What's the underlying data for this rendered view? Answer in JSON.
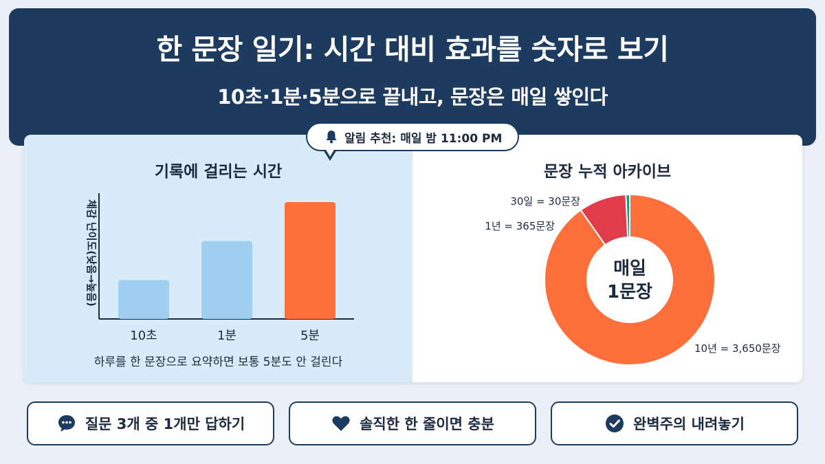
{
  "header": {
    "title": "한 문장 일기: 시간 대비 효과를 숫자로 보기",
    "subtitle": "10초·1분·5분으로 끝내고, 문장은 매일 쌓인다"
  },
  "callout": {
    "icon": "bell-icon",
    "text": "알림 추천: 매일 밤 11:00 PM"
  },
  "colors": {
    "navy": "#1d3a5f",
    "light_blue": "#9fd0f0",
    "orange": "#ff6f3c",
    "red": "#e03c4a",
    "teal": "#229379"
  },
  "left_panel": {
    "caption": "하루를 한 문장으로 요약하면 보통 5분도 안 걸린다"
  },
  "chart_data": [
    {
      "type": "bar",
      "title": "기록에 걸리는 시간",
      "ylabel": "체감 난이도(낮음→높음)",
      "xlabel": "",
      "categories": [
        "10초",
        "1분",
        "5분"
      ],
      "values": [
        1,
        2,
        3
      ],
      "ylim": [
        0,
        3
      ],
      "bar_colors": [
        "#9fd0f0",
        "#9fd0f0",
        "#ff6f3c"
      ],
      "y_ticks_shown": false,
      "grid": false
    },
    {
      "type": "pie",
      "title": "문장 누적 아카이브",
      "center_label": [
        "매일",
        "1문장"
      ],
      "categories": [
        "10년 = 3,650문장",
        "1년 = 365문장",
        "30일 = 30문장"
      ],
      "values": [
        3650,
        365,
        30
      ],
      "slice_colors": [
        "#ff6f3c",
        "#e03c4a",
        "#229379"
      ]
    }
  ],
  "pills": [
    {
      "icon": "chat-bubble-icon",
      "label": "질문 3개 중 1개만 답하기"
    },
    {
      "icon": "heart-icon",
      "label": "솔직한 한 줄이면 충분"
    },
    {
      "icon": "check-circle-icon",
      "label": "완벽주의 내려놓기"
    }
  ]
}
